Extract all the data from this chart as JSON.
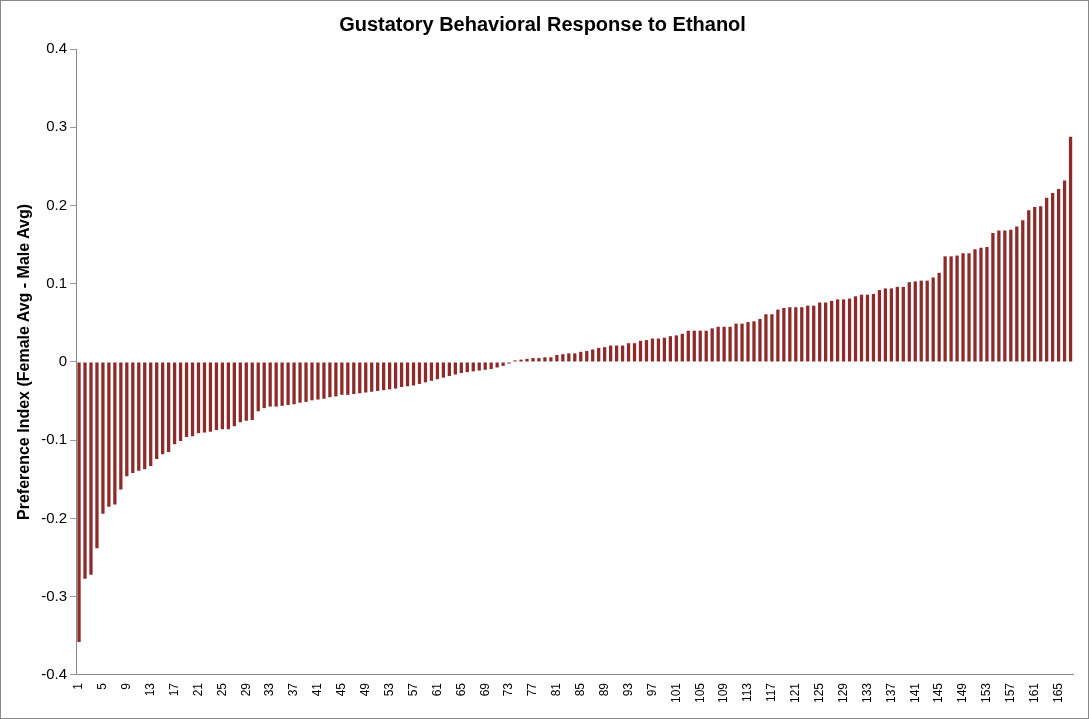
{
  "chart_data": {
    "type": "bar",
    "title": "Gustatory Behavioral Response to Ethanol",
    "ylabel": "Preference Index (Female Avg - Male Avg)",
    "categories": [
      "1",
      null,
      null,
      null,
      "5",
      null,
      null,
      null,
      "9",
      null,
      null,
      null,
      "13",
      null,
      null,
      null,
      "17",
      null,
      null,
      null,
      "21",
      null,
      null,
      null,
      "25",
      null,
      null,
      null,
      "29",
      null,
      null,
      null,
      "33",
      null,
      null,
      null,
      "37",
      null,
      null,
      null,
      "41",
      null,
      null,
      null,
      "45",
      null,
      null,
      null,
      "49",
      null,
      null,
      null,
      "53",
      null,
      null,
      null,
      "57",
      null,
      null,
      null,
      "61",
      null,
      null,
      null,
      "65",
      null,
      null,
      null,
      "69",
      null,
      null,
      null,
      "73",
      null,
      null,
      null,
      "77",
      null,
      null,
      null,
      "81",
      null,
      null,
      null,
      "85",
      null,
      null,
      null,
      "89",
      null,
      null,
      null,
      "93",
      null,
      null,
      null,
      "97",
      null,
      null,
      null,
      "101",
      null,
      null,
      null,
      "105",
      null,
      null,
      null,
      "109",
      null,
      null,
      null,
      "113",
      null,
      null,
      null,
      "117",
      null,
      null,
      null,
      "121",
      null,
      null,
      null,
      "125",
      null,
      null,
      null,
      "129",
      null,
      null,
      null,
      "133",
      null,
      null,
      null,
      "137",
      null,
      null,
      null,
      "141",
      null,
      null,
      null,
      "145",
      null,
      null,
      null,
      "149",
      null,
      null,
      null,
      "153",
      null,
      null,
      null,
      "157",
      null,
      null,
      null,
      "161",
      null,
      null,
      null,
      "165",
      null,
      null
    ],
    "values": [
      -0.358,
      -0.277,
      -0.272,
      -0.238,
      -0.194,
      -0.185,
      -0.182,
      -0.163,
      -0.146,
      -0.142,
      -0.139,
      -0.137,
      -0.133,
      -0.124,
      -0.118,
      -0.115,
      -0.105,
      -0.101,
      -0.096,
      -0.095,
      -0.091,
      -0.09,
      -0.089,
      -0.087,
      -0.086,
      -0.086,
      -0.082,
      -0.077,
      -0.075,
      -0.074,
      -0.063,
      -0.059,
      -0.057,
      -0.057,
      -0.056,
      -0.055,
      -0.054,
      -0.052,
      -0.051,
      -0.049,
      -0.048,
      -0.047,
      -0.045,
      -0.044,
      -0.042,
      -0.042,
      -0.041,
      -0.04,
      -0.039,
      -0.038,
      -0.037,
      -0.036,
      -0.035,
      -0.034,
      -0.032,
      -0.031,
      -0.03,
      -0.028,
      -0.026,
      -0.024,
      -0.022,
      -0.02,
      -0.018,
      -0.016,
      -0.014,
      -0.013,
      -0.012,
      -0.011,
      -0.01,
      -0.009,
      -0.007,
      -0.005,
      -0.002,
      0.002,
      0.003,
      0.004,
      0.005,
      0.005,
      0.006,
      0.006,
      0.009,
      0.01,
      0.011,
      0.011,
      0.013,
      0.014,
      0.016,
      0.018,
      0.019,
      0.021,
      0.021,
      0.021,
      0.024,
      0.024,
      0.027,
      0.028,
      0.03,
      0.03,
      0.031,
      0.033,
      0.034,
      0.036,
      0.04,
      0.04,
      0.04,
      0.04,
      0.043,
      0.045,
      0.045,
      0.045,
      0.049,
      0.049,
      0.051,
      0.052,
      0.055,
      0.061,
      0.061,
      0.067,
      0.069,
      0.07,
      0.07,
      0.07,
      0.072,
      0.072,
      0.076,
      0.076,
      0.078,
      0.08,
      0.08,
      0.081,
      0.084,
      0.086,
      0.086,
      0.087,
      0.092,
      0.094,
      0.094,
      0.096,
      0.096,
      0.102,
      0.103,
      0.104,
      0.104,
      0.108,
      0.114,
      0.135,
      0.135,
      0.136,
      0.139,
      0.139,
      0.144,
      0.146,
      0.147,
      0.165,
      0.168,
      0.168,
      0.169,
      0.173,
      0.181,
      0.194,
      0.198,
      0.199,
      0.21,
      0.216,
      0.221,
      0.232,
      0.288
    ],
    "color": "#8e2a2a",
    "ylim": [
      -0.4,
      0.4
    ],
    "yticks": [
      -0.4,
      -0.3,
      -0.2,
      -0.1,
      0,
      0.1,
      0.2,
      0.3,
      0.4
    ],
    "grid": false,
    "legend": false
  }
}
